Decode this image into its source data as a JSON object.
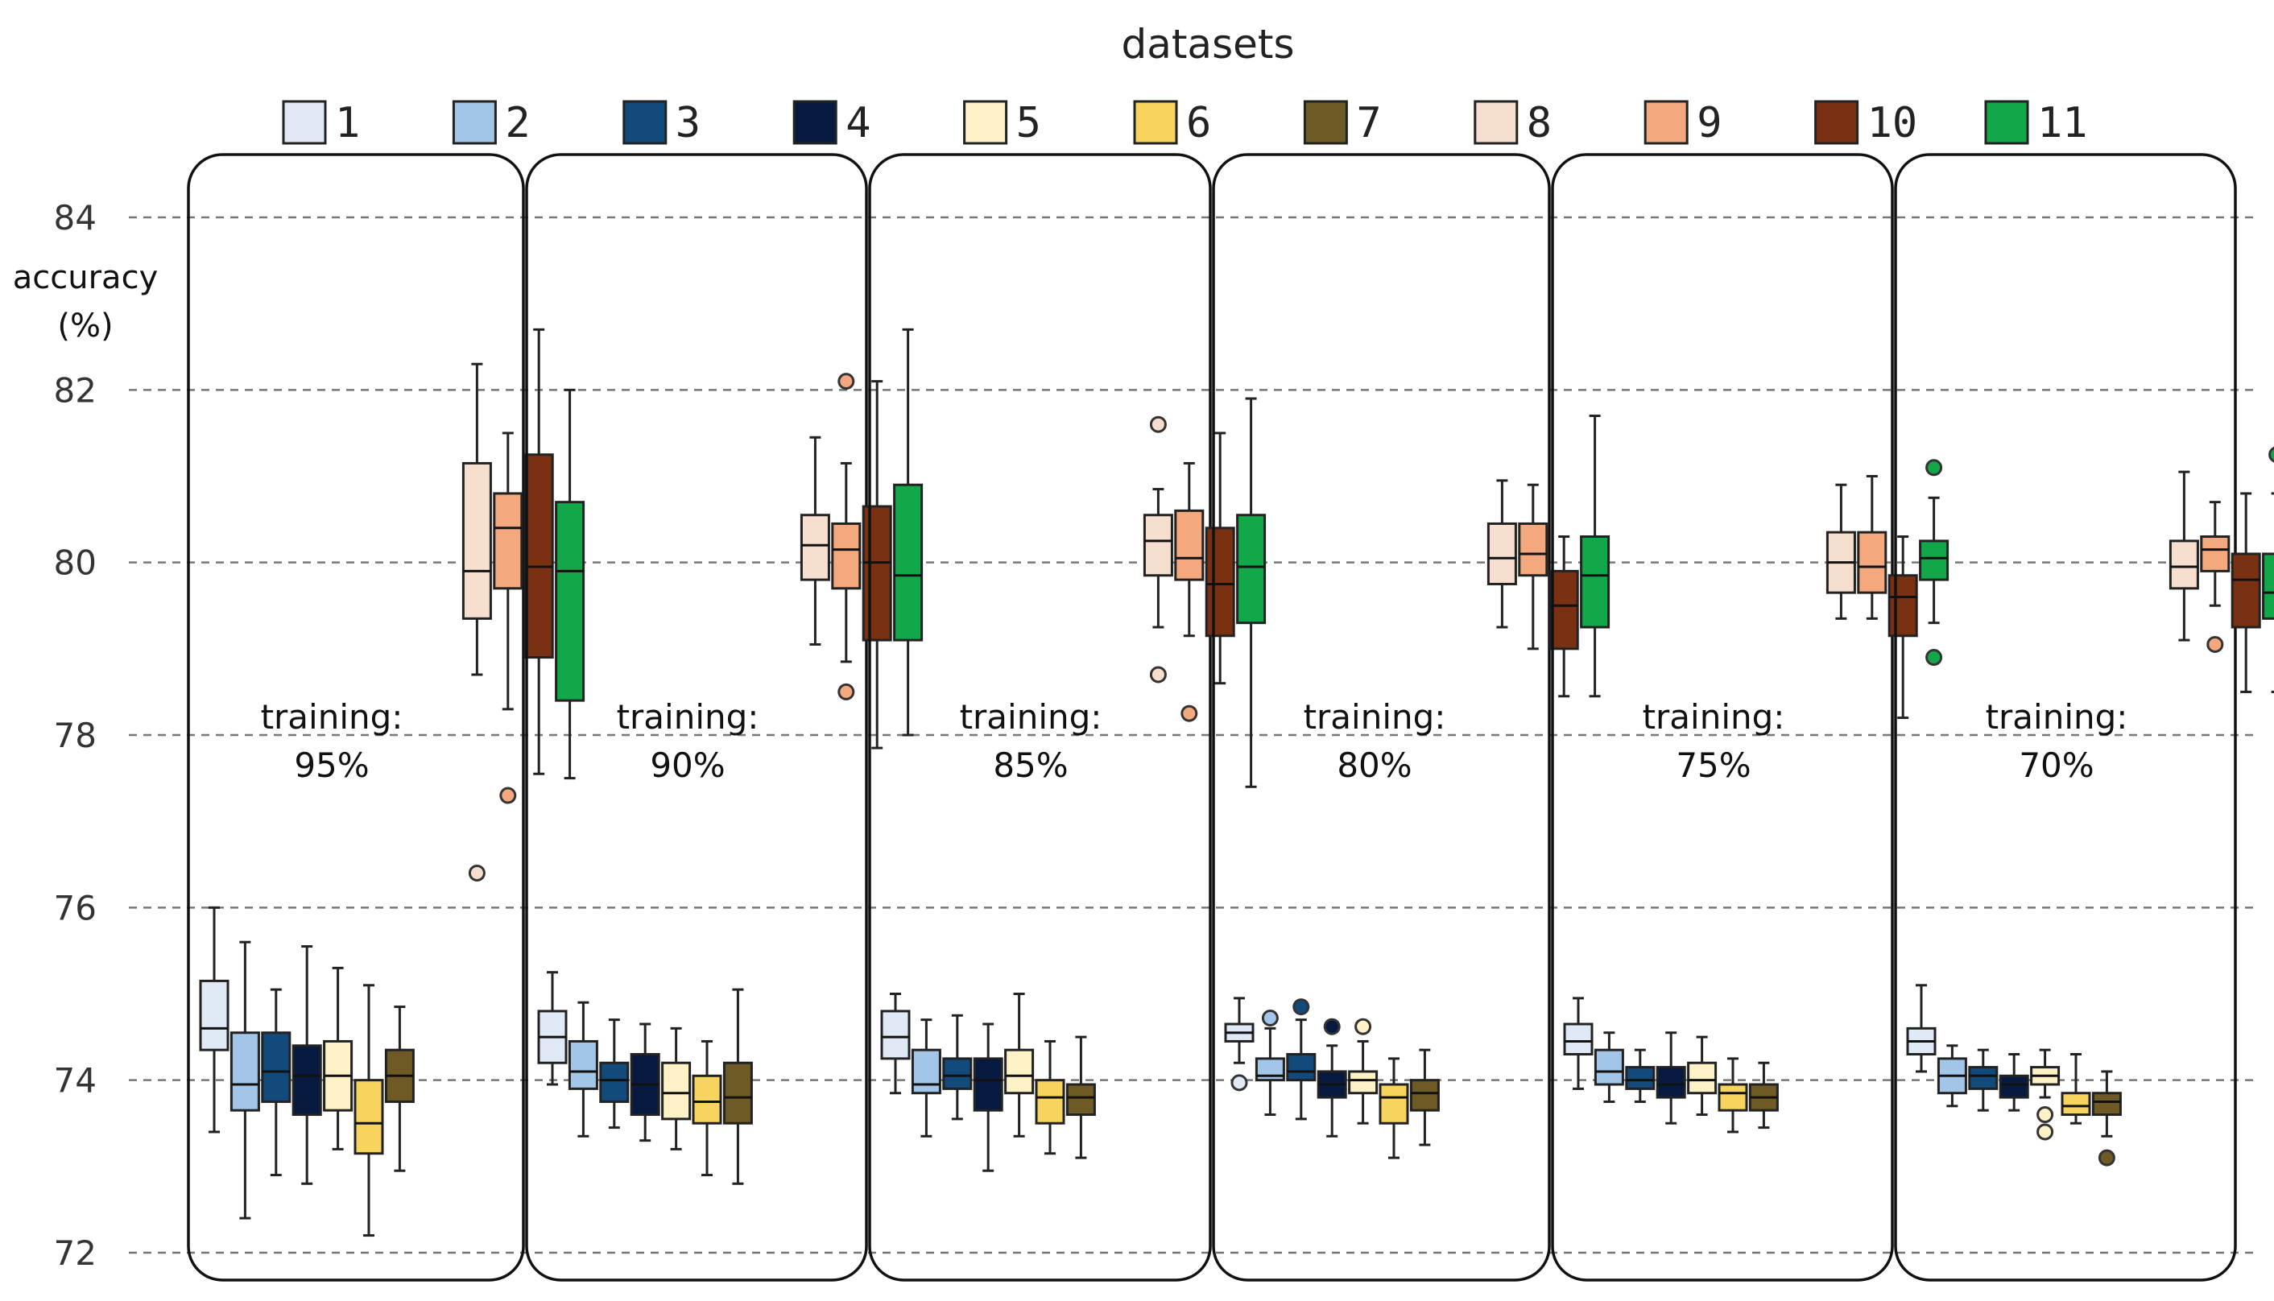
{
  "chart_data": {
    "type": "boxplot",
    "title": "datasets",
    "ylabel": "accuracy (%)",
    "ylabel_lines": [
      "accuracy",
      "(%)"
    ],
    "ylim": [
      72,
      84
    ],
    "yticks": [
      72,
      74,
      76,
      78,
      80,
      82,
      84
    ],
    "grid": true,
    "legend": {
      "title": "datasets",
      "placement": "top",
      "entries": [
        "1",
        "2",
        "3",
        "4",
        "5",
        "6",
        "7",
        "8",
        "9",
        "10",
        "11"
      ],
      "colors": [
        "#dfeaf6",
        "#a3c5e8",
        "#134a7c",
        "#061a40",
        "#fff2c6",
        "#f6d45e",
        "#6e5a24",
        "#f7dfcf",
        "#f3a87e",
        "#7a3112",
        "#12a84a"
      ]
    },
    "panels": [
      {
        "label_lines": [
          "training:",
          "95%"
        ],
        "boxes": [
          {
            "dataset": "1",
            "whislo": 73.4,
            "q1": 74.35,
            "med": 74.6,
            "q3": 75.15,
            "whishi": 76.0,
            "fliers": []
          },
          {
            "dataset": "2",
            "whislo": 72.4,
            "q1": 73.65,
            "med": 73.95,
            "q3": 74.55,
            "whishi": 75.6,
            "fliers": []
          },
          {
            "dataset": "3",
            "whislo": 72.9,
            "q1": 73.75,
            "med": 74.1,
            "q3": 74.55,
            "whishi": 75.05,
            "fliers": []
          },
          {
            "dataset": "4",
            "whislo": 72.8,
            "q1": 73.6,
            "med": 74.05,
            "q3": 74.4,
            "whishi": 75.55,
            "fliers": []
          },
          {
            "dataset": "5",
            "whislo": 73.2,
            "q1": 73.65,
            "med": 74.05,
            "q3": 74.45,
            "whishi": 75.3,
            "fliers": []
          },
          {
            "dataset": "6",
            "whislo": 72.2,
            "q1": 73.15,
            "med": 73.5,
            "q3": 74.0,
            "whishi": 75.1,
            "fliers": []
          },
          {
            "dataset": "7",
            "whislo": 72.95,
            "q1": 73.75,
            "med": 74.05,
            "q3": 74.35,
            "whishi": 74.85,
            "fliers": []
          },
          {
            "dataset": "8",
            "whislo": 78.7,
            "q1": 79.35,
            "med": 79.9,
            "q3": 81.15,
            "whishi": 82.3,
            "fliers": [
              76.4
            ]
          },
          {
            "dataset": "9",
            "whislo": 78.3,
            "q1": 79.7,
            "med": 80.4,
            "q3": 80.8,
            "whishi": 81.5,
            "fliers": [
              77.3
            ]
          },
          {
            "dataset": "10",
            "whislo": 77.55,
            "q1": 78.9,
            "med": 79.95,
            "q3": 81.25,
            "whishi": 82.7,
            "fliers": []
          },
          {
            "dataset": "11",
            "whislo": 77.5,
            "q1": 78.4,
            "med": 79.9,
            "q3": 80.7,
            "whishi": 82.0,
            "fliers": []
          }
        ]
      },
      {
        "label_lines": [
          "training:",
          "90%"
        ],
        "boxes": [
          {
            "dataset": "1",
            "whislo": 73.95,
            "q1": 74.2,
            "med": 74.5,
            "q3": 74.8,
            "whishi": 75.25,
            "fliers": []
          },
          {
            "dataset": "2",
            "whislo": 73.35,
            "q1": 73.9,
            "med": 74.1,
            "q3": 74.45,
            "whishi": 74.9,
            "fliers": []
          },
          {
            "dataset": "3",
            "whislo": 73.45,
            "q1": 73.75,
            "med": 74.0,
            "q3": 74.2,
            "whishi": 74.7,
            "fliers": []
          },
          {
            "dataset": "4",
            "whislo": 73.3,
            "q1": 73.6,
            "med": 73.95,
            "q3": 74.3,
            "whishi": 74.65,
            "fliers": []
          },
          {
            "dataset": "5",
            "whislo": 73.2,
            "q1": 73.55,
            "med": 73.85,
            "q3": 74.2,
            "whishi": 74.6,
            "fliers": []
          },
          {
            "dataset": "6",
            "whislo": 72.9,
            "q1": 73.5,
            "med": 73.75,
            "q3": 74.05,
            "whishi": 74.45,
            "fliers": []
          },
          {
            "dataset": "7",
            "whislo": 72.8,
            "q1": 73.5,
            "med": 73.8,
            "q3": 74.2,
            "whishi": 75.05,
            "fliers": []
          },
          {
            "dataset": "8",
            "whislo": 79.05,
            "q1": 79.8,
            "med": 80.2,
            "q3": 80.55,
            "whishi": 81.45,
            "fliers": []
          },
          {
            "dataset": "9",
            "whislo": 78.85,
            "q1": 79.7,
            "med": 80.15,
            "q3": 80.45,
            "whishi": 81.15,
            "fliers": [
              82.1,
              78.5
            ]
          },
          {
            "dataset": "10",
            "whislo": 77.85,
            "q1": 79.1,
            "med": 80.0,
            "q3": 80.65,
            "whishi": 82.1,
            "fliers": []
          },
          {
            "dataset": "11",
            "whislo": 78.0,
            "q1": 79.1,
            "med": 79.85,
            "q3": 80.9,
            "whishi": 82.7,
            "fliers": []
          }
        ]
      },
      {
        "label_lines": [
          "training:",
          "85%"
        ],
        "boxes": [
          {
            "dataset": "1",
            "whislo": 73.85,
            "q1": 74.25,
            "med": 74.5,
            "q3": 74.8,
            "whishi": 75.0,
            "fliers": []
          },
          {
            "dataset": "2",
            "whislo": 73.35,
            "q1": 73.85,
            "med": 73.95,
            "q3": 74.35,
            "whishi": 74.7,
            "fliers": []
          },
          {
            "dataset": "3",
            "whislo": 73.55,
            "q1": 73.9,
            "med": 74.05,
            "q3": 74.25,
            "whishi": 74.75,
            "fliers": []
          },
          {
            "dataset": "4",
            "whislo": 72.95,
            "q1": 73.65,
            "med": 74.0,
            "q3": 74.25,
            "whishi": 74.65,
            "fliers": []
          },
          {
            "dataset": "5",
            "whislo": 73.35,
            "q1": 73.85,
            "med": 74.05,
            "q3": 74.35,
            "whishi": 75.0,
            "fliers": []
          },
          {
            "dataset": "6",
            "whislo": 73.15,
            "q1": 73.5,
            "med": 73.8,
            "q3": 74.0,
            "whishi": 74.45,
            "fliers": []
          },
          {
            "dataset": "7",
            "whislo": 73.1,
            "q1": 73.6,
            "med": 73.8,
            "q3": 73.95,
            "whishi": 74.5,
            "fliers": []
          },
          {
            "dataset": "8",
            "whislo": 79.25,
            "q1": 79.85,
            "med": 80.25,
            "q3": 80.55,
            "whishi": 80.85,
            "fliers": [
              81.6,
              78.7
            ]
          },
          {
            "dataset": "9",
            "whislo": 79.15,
            "q1": 79.8,
            "med": 80.05,
            "q3": 80.6,
            "whishi": 81.15,
            "fliers": [
              78.25
            ]
          },
          {
            "dataset": "10",
            "whislo": 78.6,
            "q1": 79.15,
            "med": 79.75,
            "q3": 80.4,
            "whishi": 81.5,
            "fliers": []
          },
          {
            "dataset": "11",
            "whislo": 77.4,
            "q1": 79.3,
            "med": 79.95,
            "q3": 80.55,
            "whishi": 81.9,
            "fliers": []
          }
        ]
      },
      {
        "label_lines": [
          "training:",
          "80%"
        ],
        "boxes": [
          {
            "dataset": "1",
            "whislo": 74.2,
            "q1": 74.45,
            "med": 74.55,
            "q3": 74.65,
            "whishi": 74.95,
            "fliers": [
              73.97
            ]
          },
          {
            "dataset": "2",
            "whislo": 73.6,
            "q1": 74.0,
            "med": 74.05,
            "q3": 74.25,
            "whishi": 74.6,
            "fliers": [
              74.72
            ]
          },
          {
            "dataset": "3",
            "whislo": 73.55,
            "q1": 74.0,
            "med": 74.1,
            "q3": 74.3,
            "whishi": 74.7,
            "fliers": [
              74.85
            ]
          },
          {
            "dataset": "4",
            "whislo": 73.35,
            "q1": 73.8,
            "med": 73.95,
            "q3": 74.1,
            "whishi": 74.4,
            "fliers": [
              74.62
            ]
          },
          {
            "dataset": "5",
            "whislo": 73.5,
            "q1": 73.85,
            "med": 74.0,
            "q3": 74.1,
            "whishi": 74.45,
            "fliers": [
              74.62
            ]
          },
          {
            "dataset": "6",
            "whislo": 73.1,
            "q1": 73.5,
            "med": 73.8,
            "q3": 73.95,
            "whishi": 74.25,
            "fliers": []
          },
          {
            "dataset": "7",
            "whislo": 73.25,
            "q1": 73.65,
            "med": 73.85,
            "q3": 74.0,
            "whishi": 74.35,
            "fliers": []
          },
          {
            "dataset": "8",
            "whislo": 79.25,
            "q1": 79.75,
            "med": 80.05,
            "q3": 80.45,
            "whishi": 80.95,
            "fliers": []
          },
          {
            "dataset": "9",
            "whislo": 79.0,
            "q1": 79.85,
            "med": 80.1,
            "q3": 80.45,
            "whishi": 80.9,
            "fliers": []
          },
          {
            "dataset": "10",
            "whislo": 78.45,
            "q1": 79.0,
            "med": 79.5,
            "q3": 79.9,
            "whishi": 80.3,
            "fliers": []
          },
          {
            "dataset": "11",
            "whislo": 78.45,
            "q1": 79.25,
            "med": 79.85,
            "q3": 80.3,
            "whishi": 81.7,
            "fliers": []
          }
        ]
      },
      {
        "label_lines": [
          "training:",
          "75%"
        ],
        "boxes": [
          {
            "dataset": "1",
            "whislo": 73.9,
            "q1": 74.3,
            "med": 74.45,
            "q3": 74.65,
            "whishi": 74.95,
            "fliers": []
          },
          {
            "dataset": "2",
            "whislo": 73.75,
            "q1": 73.95,
            "med": 74.1,
            "q3": 74.35,
            "whishi": 74.55,
            "fliers": []
          },
          {
            "dataset": "3",
            "whislo": 73.75,
            "q1": 73.9,
            "med": 74.0,
            "q3": 74.15,
            "whishi": 74.35,
            "fliers": []
          },
          {
            "dataset": "4",
            "whislo": 73.5,
            "q1": 73.8,
            "med": 73.95,
            "q3": 74.15,
            "whishi": 74.55,
            "fliers": []
          },
          {
            "dataset": "5",
            "whislo": 73.6,
            "q1": 73.85,
            "med": 74.0,
            "q3": 74.2,
            "whishi": 74.5,
            "fliers": []
          },
          {
            "dataset": "6",
            "whislo": 73.4,
            "q1": 73.65,
            "med": 73.85,
            "q3": 73.95,
            "whishi": 74.25,
            "fliers": []
          },
          {
            "dataset": "7",
            "whislo": 73.45,
            "q1": 73.65,
            "med": 73.8,
            "q3": 73.95,
            "whishi": 74.2,
            "fliers": []
          },
          {
            "dataset": "8",
            "whislo": 79.35,
            "q1": 79.65,
            "med": 80.0,
            "q3": 80.35,
            "whishi": 80.9,
            "fliers": []
          },
          {
            "dataset": "9",
            "whislo": 79.35,
            "q1": 79.65,
            "med": 79.95,
            "q3": 80.35,
            "whishi": 81.0,
            "fliers": []
          },
          {
            "dataset": "10",
            "whislo": 78.2,
            "q1": 79.15,
            "med": 79.6,
            "q3": 79.85,
            "whishi": 80.3,
            "fliers": []
          },
          {
            "dataset": "11",
            "whislo": 79.3,
            "q1": 79.8,
            "med": 80.05,
            "q3": 80.25,
            "whishi": 80.75,
            "fliers": [
              81.1,
              78.9
            ]
          }
        ]
      },
      {
        "label_lines": [
          "training:",
          "70%"
        ],
        "boxes": [
          {
            "dataset": "1",
            "whislo": 74.1,
            "q1": 74.3,
            "med": 74.45,
            "q3": 74.6,
            "whishi": 75.1,
            "fliers": []
          },
          {
            "dataset": "2",
            "whislo": 73.7,
            "q1": 73.85,
            "med": 74.05,
            "q3": 74.25,
            "whishi": 74.4,
            "fliers": []
          },
          {
            "dataset": "3",
            "whislo": 73.65,
            "q1": 73.9,
            "med": 74.05,
            "q3": 74.15,
            "whishi": 74.35,
            "fliers": []
          },
          {
            "dataset": "4",
            "whislo": 73.65,
            "q1": 73.8,
            "med": 73.95,
            "q3": 74.05,
            "whishi": 74.3,
            "fliers": []
          },
          {
            "dataset": "5",
            "whislo": 73.8,
            "q1": 73.95,
            "med": 74.05,
            "q3": 74.15,
            "whishi": 74.35,
            "fliers": [
              73.6,
              73.4
            ]
          },
          {
            "dataset": "6",
            "whislo": 73.5,
            "q1": 73.6,
            "med": 73.7,
            "q3": 73.85,
            "whishi": 74.3,
            "fliers": []
          },
          {
            "dataset": "7",
            "whislo": 73.35,
            "q1": 73.6,
            "med": 73.75,
            "q3": 73.85,
            "whishi": 74.1,
            "fliers": [
              73.1
            ]
          },
          {
            "dataset": "8",
            "whislo": 79.1,
            "q1": 79.7,
            "med": 79.95,
            "q3": 80.25,
            "whishi": 81.05,
            "fliers": []
          },
          {
            "dataset": "9",
            "whislo": 79.5,
            "q1": 79.9,
            "med": 80.15,
            "q3": 80.3,
            "whishi": 80.7,
            "fliers": [
              79.05
            ]
          },
          {
            "dataset": "10",
            "whislo": 78.5,
            "q1": 79.25,
            "med": 79.8,
            "q3": 80.1,
            "whishi": 80.8,
            "fliers": []
          },
          {
            "dataset": "11",
            "whislo": 78.5,
            "q1": 79.35,
            "med": 79.65,
            "q3": 80.1,
            "whishi": 80.8,
            "fliers": [
              81.25
            ]
          }
        ]
      }
    ]
  }
}
